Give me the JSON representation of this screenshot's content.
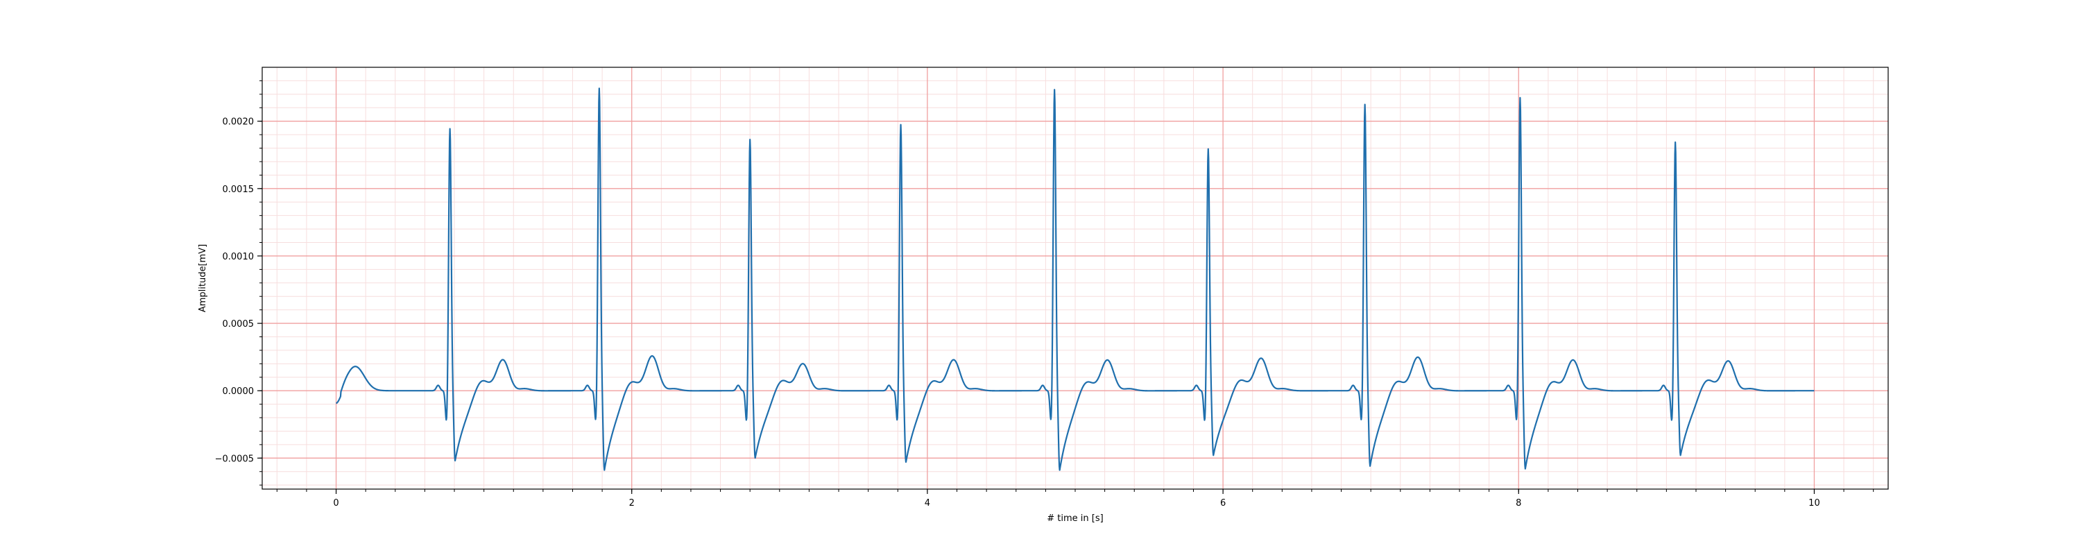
{
  "chart_data": {
    "type": "line",
    "title": "",
    "xlabel": "# time in [s]",
    "ylabel": "Amplitude[mV]",
    "xlim": [
      -0.5,
      10.5
    ],
    "ylim": [
      -0.00073,
      0.0024
    ],
    "x_ticks": [
      0,
      2,
      4,
      6,
      8,
      10
    ],
    "x_tick_labels": [
      "0",
      "2",
      "4",
      "6",
      "8",
      "10"
    ],
    "y_ticks": [
      -0.0005,
      0.0,
      0.0005,
      0.001,
      0.0015,
      0.002
    ],
    "y_tick_labels": [
      "−0.0005",
      "0.0000",
      "0.0005",
      "0.0010",
      "0.0015",
      "0.0020"
    ],
    "grid": {
      "major": true,
      "minor": true,
      "major_color": "#f0a0a0",
      "minor_color": "#f7dede"
    },
    "line_color": "#1f6fad",
    "series": [
      {
        "r_peaks_s": [
          0.77,
          1.78,
          2.8,
          3.82,
          4.86,
          5.9,
          6.96,
          8.01,
          9.06
        ],
        "r_amplitudes_mV": [
          0.00195,
          0.00225,
          0.00187,
          0.00198,
          0.00224,
          0.0018,
          0.00213,
          0.00218,
          0.00185
        ],
        "s_amplitudes_mV": [
          -0.00052,
          -0.00059,
          -0.0005,
          -0.00053,
          -0.00059,
          -0.00048,
          -0.00056,
          -0.00058,
          -0.00048
        ],
        "t_wave_amplitudes_mV": [
          0.00018,
          0.00018,
          0.00021,
          0.00015,
          0.00018,
          0.00018,
          0.00019,
          0.0002,
          0.00018,
          0.00017
        ],
        "start": {
          "x": 0.0,
          "y": -0.0001
        },
        "end": {
          "x": 10.0,
          "y": 0.0
        }
      }
    ]
  }
}
